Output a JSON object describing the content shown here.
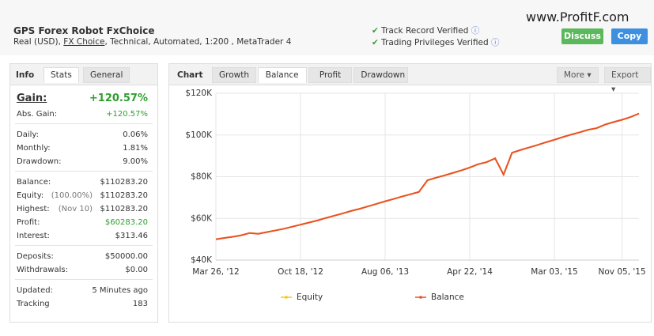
{
  "header": {
    "title": "GPS Forex Robot FxChoice",
    "subtitle_prefix": "Real (USD),",
    "broker": "FX Choice",
    "subtitle_suffix": ", Technical, Automated, 1:200 , MetaTrader 4",
    "verified": [
      "Track Record Verified",
      "Trading Privileges Verified"
    ],
    "buttons": [
      "Discuss",
      "Copy"
    ],
    "logo": "www.ProfitF.com"
  },
  "info": {
    "title": "Info",
    "tabs": [
      "Stats",
      "General"
    ],
    "gain_label": "Gain:",
    "gain": "+120.57%",
    "groups": [
      [
        {
          "label": "Abs. Gain:",
          "value": "+120.57%",
          "green": true
        }
      ],
      [
        {
          "label": "Daily:",
          "value": "0.06%"
        },
        {
          "label": "Monthly:",
          "value": "1.81%"
        },
        {
          "label": "Drawdown:",
          "value": "9.00%"
        }
      ],
      [
        {
          "label": "Balance:",
          "value": "$110283.20"
        },
        {
          "label": "Equity:",
          "note": "(100.00%)",
          "value": "$110283.20"
        },
        {
          "label": "Highest:",
          "note": "(Nov 10)",
          "value": "$110283.20"
        },
        {
          "label": "Profit:",
          "value": "$60283.20",
          "green": true
        },
        {
          "label": "Interest:",
          "value": "$313.46"
        }
      ],
      [
        {
          "label": "Deposits:",
          "value": "$50000.00"
        },
        {
          "label": "Withdrawals:",
          "value": "$0.00"
        }
      ],
      [
        {
          "label": "Updated:",
          "value": "5 Minutes ago"
        },
        {
          "label": "Tracking",
          "value": "183"
        }
      ]
    ]
  },
  "tabs": {
    "title": "Chart",
    "items": [
      "Growth",
      "Balance",
      "Profit",
      "Drawdown"
    ],
    "active": 1,
    "more": "More",
    "export": "Export"
  },
  "chart_data": {
    "type": "line",
    "categories": [
      "Mar 26, '12",
      null,
      null,
      null,
      null,
      null,
      null,
      null,
      null,
      null,
      "Oct 18, '12",
      null,
      null,
      null,
      null,
      null,
      null,
      null,
      null,
      null,
      "Aug 06, '13",
      null,
      null,
      null,
      null,
      null,
      null,
      null,
      null,
      null,
      "Apr 22, '14",
      null,
      null,
      null,
      null,
      null,
      null,
      null,
      null,
      null,
      "Mar 03, '15",
      null,
      null,
      null,
      null,
      null,
      null,
      null,
      "Nov 05, '15",
      null,
      null
    ],
    "series": [
      {
        "name": "Equity",
        "color": "#f5c518",
        "values": [
          50000,
          50600,
          51200,
          51900,
          53000,
          52600,
          53400,
          54200,
          55000,
          56000,
          57000,
          58000,
          59000,
          60200,
          61300,
          62400,
          63600,
          64600,
          65800,
          67000,
          68200,
          69300,
          70500,
          71600,
          72700,
          78300,
          79500,
          80600,
          81800,
          83000,
          84400,
          86000,
          87000,
          88800,
          81000,
          91500,
          92800,
          94000,
          95200,
          96500,
          97700,
          99000,
          100200,
          101300,
          102500,
          103300,
          105000,
          106200,
          107300,
          108600,
          110283.2
        ]
      },
      {
        "name": "Balance",
        "color": "#e8512a",
        "values": [
          50000,
          50600,
          51200,
          51900,
          53000,
          52600,
          53400,
          54200,
          55000,
          56000,
          57000,
          58000,
          59000,
          60200,
          61300,
          62400,
          63600,
          64600,
          65800,
          67000,
          68200,
          69300,
          70500,
          71600,
          72700,
          78300,
          79500,
          80600,
          81800,
          83000,
          84400,
          86000,
          87000,
          88800,
          81000,
          91500,
          92800,
          94000,
          95200,
          96500,
          97700,
          99000,
          100200,
          101300,
          102500,
          103300,
          105000,
          106200,
          107300,
          108600,
          110283.2
        ]
      }
    ],
    "ylim": [
      40000,
      120000
    ],
    "yticks": [
      {
        "value": 40000,
        "label": "$40K"
      },
      {
        "value": 60000,
        "label": "$60K"
      },
      {
        "value": 80000,
        "label": "$80K"
      },
      {
        "value": 100000,
        "label": "$100K"
      },
      {
        "value": 120000,
        "label": "$120K"
      }
    ],
    "grid": true
  }
}
